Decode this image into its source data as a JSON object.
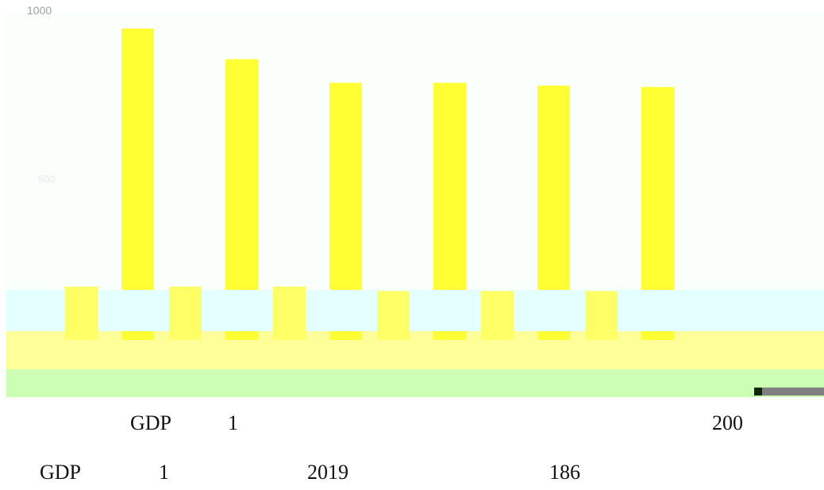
{
  "chart_data": {
    "type": "bar",
    "title": "",
    "xlabel": "",
    "ylabel": "",
    "ylim": [
      0,
      1000
    ],
    "tick_label_top": "1000",
    "tick_label_mid": "500",
    "categories": [
      "",
      "",
      "",
      "",
      "",
      ""
    ],
    "series": [
      {
        "values": [
          940,
          830,
          745,
          745,
          735,
          730
        ],
        "color": "#ffff33"
      },
      {
        "values": [
          120,
          120,
          120,
          110,
          110,
          110
        ],
        "color": "#ffff66"
      }
    ],
    "colors": {
      "plot_background": "#fafffc",
      "band_cyan": "#e4ffff",
      "band_yellow": "#ffff99",
      "band_green": "#ccffb3",
      "corner_dark": "#0a2a0a",
      "corner_gray": "#808080"
    }
  },
  "captions": {
    "line1": {
      "a": "GDP",
      "b": "1",
      "c": "200"
    },
    "line2": {
      "a": "GDP",
      "b": "1",
      "c": "2019",
      "d": "186"
    }
  }
}
